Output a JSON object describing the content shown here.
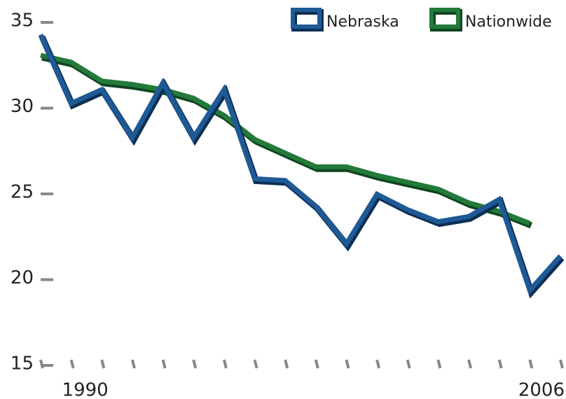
{
  "chart_data": {
    "type": "line",
    "categories": [
      null,
      "1990",
      null,
      null,
      null,
      null,
      null,
      null,
      null,
      null,
      null,
      null,
      null,
      null,
      null,
      null,
      null,
      "2006"
    ],
    "series": [
      {
        "name": "Nebraska",
        "color": "#1f5a96",
        "values": [
          34.2,
          30.2,
          31.0,
          28.2,
          31.4,
          28.2,
          31.0,
          25.8,
          25.7,
          24.2,
          22.0,
          24.9,
          24.0,
          23.3,
          23.6,
          24.6,
          19.3,
          21.3
        ]
      },
      {
        "name": "Nationwide",
        "color": "#237a3a",
        "values": [
          33.0,
          32.6,
          31.5,
          31.3,
          31.0,
          30.5,
          29.5,
          28.1,
          27.3,
          26.5,
          26.5,
          26.0,
          25.6,
          25.2,
          24.4,
          23.9,
          23.2,
          null
        ]
      }
    ],
    "ylim": [
      15,
      35
    ],
    "yticks": [
      15,
      20,
      25,
      30,
      35
    ],
    "legend": "top-right"
  }
}
